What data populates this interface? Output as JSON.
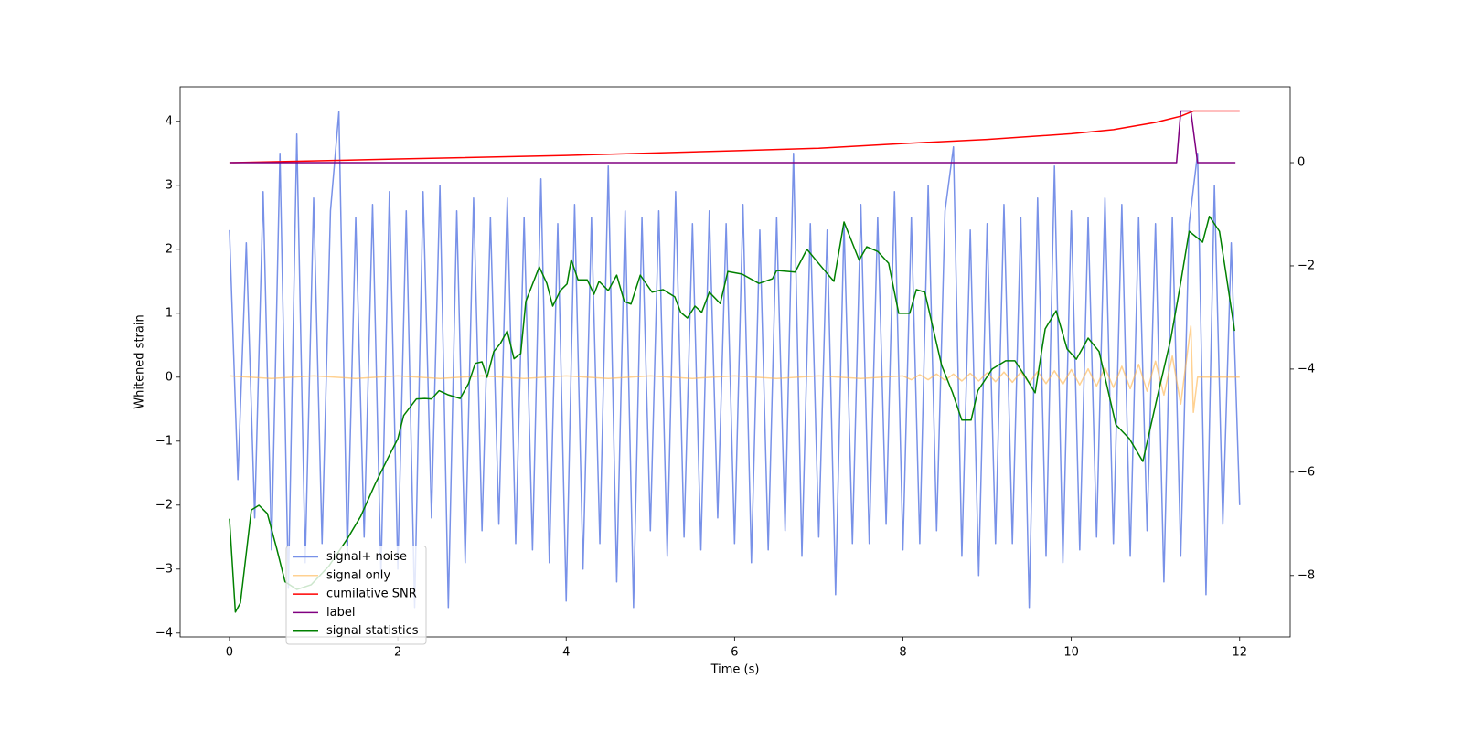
{
  "chart_data": {
    "type": "line",
    "xlabel": "Time (s)",
    "ylabel": "Whitened strain",
    "xlim": [
      -0.586,
      12.6
    ],
    "ylim": [
      -4.06,
      4.54
    ],
    "y2lim": [
      -9.19,
      1.47
    ],
    "xticks": [
      0,
      2,
      4,
      6,
      8,
      10,
      12
    ],
    "yticks": [
      {
        "value": -4,
        "label": "−4"
      },
      {
        "value": -3,
        "label": "−3"
      },
      {
        "value": -2,
        "label": "−2"
      },
      {
        "value": -1,
        "label": "−1"
      },
      0,
      1,
      2,
      3,
      4
    ],
    "y2ticks": [
      {
        "value": -8,
        "label": "−8"
      },
      {
        "value": -6,
        "label": "−6"
      },
      {
        "value": -4,
        "label": "−4"
      },
      {
        "value": -2,
        "label": "−2"
      },
      0
    ],
    "legend_loc": "lower left",
    "series": [
      {
        "name": "signal+ noise",
        "color": "#7891e8",
        "x": [
          0,
          0.1,
          0.2,
          0.3,
          0.4,
          0.5,
          0.6,
          0.7,
          0.8,
          0.9,
          1,
          1.1,
          1.2,
          1.3,
          1.4,
          1.5,
          1.6,
          1.7,
          1.8,
          1.9,
          2,
          2.1,
          2.2,
          2.3,
          2.4,
          2.5,
          2.6,
          2.7,
          2.8,
          2.9,
          3,
          3.1,
          3.2,
          3.3,
          3.4,
          3.5,
          3.6,
          3.7,
          3.8,
          3.9,
          4,
          4.1,
          4.2,
          4.3,
          4.4,
          4.5,
          4.6,
          4.7,
          4.8,
          4.9,
          5,
          5.1,
          5.2,
          5.3,
          5.4,
          5.5,
          5.6,
          5.7,
          5.8,
          5.9,
          6,
          6.1,
          6.2,
          6.3,
          6.4,
          6.5,
          6.6,
          6.7,
          6.8,
          6.9,
          7,
          7.1,
          7.2,
          7.3,
          7.4,
          7.5,
          7.6,
          7.7,
          7.8,
          7.9,
          8,
          8.1,
          8.2,
          8.3,
          8.4,
          8.5,
          8.6,
          8.7,
          8.8,
          8.9,
          9,
          9.1,
          9.2,
          9.3,
          9.4,
          9.5,
          9.6,
          9.7,
          9.8,
          9.9,
          10,
          10.1,
          10.2,
          10.3,
          10.4,
          10.5,
          10.6,
          10.7,
          10.8,
          10.9,
          11,
          11.1,
          11.2,
          11.3,
          11.4,
          11.5,
          11.6,
          11.7,
          11.8,
          11.9,
          12
        ],
        "values": [
          2.3,
          -1.6,
          2.1,
          -2.2,
          2.9,
          -2.7,
          3.5,
          -3.3,
          3.8,
          -2.9,
          2.8,
          -2.6,
          2.6,
          4.15,
          -2.8,
          2.5,
          -2.5,
          2.7,
          -3.1,
          2.9,
          -3.0,
          2.6,
          -3.6,
          2.9,
          -2.2,
          3.0,
          -3.6,
          2.6,
          -2.9,
          2.8,
          -2.4,
          2.5,
          -2.3,
          2.8,
          -2.6,
          2.5,
          -2.7,
          3.1,
          -2.9,
          2.4,
          -3.5,
          2.7,
          -3.0,
          2.5,
          -2.6,
          3.3,
          -3.2,
          2.6,
          -3.6,
          2.5,
          -2.4,
          2.6,
          -2.8,
          2.9,
          -2.5,
          2.4,
          -2.7,
          2.6,
          -2.2,
          2.4,
          -2.6,
          2.7,
          -2.9,
          2.3,
          -2.7,
          2.5,
          -2.4,
          3.5,
          -2.8,
          2.4,
          -2.5,
          2.3,
          -3.4,
          2.4,
          -2.6,
          2.7,
          -2.6,
          2.5,
          -2.3,
          2.9,
          -2.7,
          2.5,
          -2.6,
          3.0,
          -2.4,
          2.6,
          3.6,
          -2.8,
          2.3,
          -3.1,
          2.4,
          -2.6,
          2.7,
          -2.6,
          2.5,
          -3.6,
          2.8,
          -2.8,
          3.3,
          -2.9,
          2.6,
          -2.7,
          2.5,
          -2.5,
          2.8,
          -2.6,
          2.7,
          -2.8,
          2.5,
          -2.4,
          2.4,
          -3.2,
          2.5,
          -2.8,
          2.4,
          3.5,
          -3.4,
          3.0,
          -2.3,
          2.1,
          -2.0
        ]
      },
      {
        "name": "signal only",
        "color": "#ffb347",
        "x": [
          0,
          0.5,
          1,
          1.5,
          2,
          2.5,
          3,
          3.5,
          4,
          4.5,
          5,
          5.5,
          6,
          6.5,
          7,
          7.5,
          8,
          8.1,
          8.2,
          8.3,
          8.4,
          8.5,
          8.6,
          8.7,
          8.8,
          8.9,
          9,
          9.1,
          9.2,
          9.3,
          9.4,
          9.5,
          9.6,
          9.7,
          9.8,
          9.9,
          10,
          10.1,
          10.2,
          10.3,
          10.4,
          10.5,
          10.6,
          10.7,
          10.8,
          10.9,
          11,
          11.1,
          11.2,
          11.3,
          11.4,
          11.42,
          11.45,
          11.5,
          12
        ],
        "values": [
          0.02,
          -0.02,
          0.02,
          -0.02,
          0.02,
          -0.02,
          0.02,
          -0.02,
          0.02,
          -0.02,
          0.02,
          -0.02,
          0.02,
          -0.02,
          0.02,
          -0.02,
          0.02,
          -0.04,
          0.04,
          -0.04,
          0.05,
          -0.05,
          0.05,
          -0.06,
          0.06,
          -0.06,
          0.07,
          -0.07,
          0.08,
          -0.08,
          0.08,
          -0.09,
          0.09,
          -0.1,
          0.1,
          -0.11,
          0.12,
          -0.12,
          0.13,
          -0.14,
          0.15,
          -0.16,
          0.17,
          -0.18,
          0.2,
          -0.22,
          0.25,
          -0.28,
          0.33,
          -0.42,
          0.6,
          0.8,
          -0.55,
          0,
          0
        ]
      },
      {
        "name": "cumilative SNR",
        "color": "#ff0000",
        "axis": "y2",
        "x": [
          0,
          2,
          4,
          6,
          7,
          8,
          9,
          10,
          10.5,
          11,
          11.3,
          11.45,
          12
        ],
        "values": [
          0,
          0.07,
          0.14,
          0.23,
          0.28,
          0.37,
          0.45,
          0.56,
          0.64,
          0.78,
          0.9,
          1.0,
          1.0
        ]
      },
      {
        "name": "label",
        "color": "#800080",
        "axis": "y2",
        "x": [
          0,
          11.25,
          11.3,
          11.42,
          11.5,
          11.95
        ],
        "values": [
          0,
          0,
          1,
          1,
          0,
          0
        ]
      },
      {
        "name": "signal statistics",
        "color": "#008000",
        "axis": "y2",
        "x": [
          0,
          0.07,
          0.13,
          0.26,
          0.35,
          0.45,
          0.56,
          0.66,
          0.8,
          0.97,
          1.18,
          1.4,
          1.56,
          1.73,
          1.89,
          2.0,
          2.07,
          2.22,
          2.32,
          2.4,
          2.49,
          2.6,
          2.74,
          2.84,
          2.92,
          3.0,
          3.06,
          3.14,
          3.22,
          3.3,
          3.38,
          3.46,
          3.52,
          3.68,
          3.77,
          3.84,
          3.93,
          4.01,
          4.06,
          4.14,
          4.25,
          4.33,
          4.39,
          4.5,
          4.6,
          4.69,
          4.77,
          4.88,
          5.02,
          5.15,
          5.29,
          5.36,
          5.44,
          5.53,
          5.61,
          5.7,
          5.83,
          5.92,
          6.09,
          6.29,
          6.45,
          6.5,
          6.72,
          6.86,
          7.08,
          7.18,
          7.3,
          7.4,
          7.48,
          7.57,
          7.7,
          7.83,
          7.95,
          8.08,
          8.16,
          8.26,
          8.33,
          8.46,
          8.59,
          8.7,
          8.81,
          8.89,
          9.06,
          9.22,
          9.33,
          9.44,
          9.57,
          9.69,
          9.82,
          9.95,
          10.06,
          10.2,
          10.33,
          10.53,
          10.69,
          10.85,
          11.02,
          11.18,
          11.29,
          11.4,
          11.56,
          11.64,
          11.76,
          11.83,
          11.94
        ],
        "values": [
          -6.9,
          -8.71,
          -8.53,
          -6.73,
          -6.64,
          -6.8,
          -7.47,
          -8.12,
          -8.27,
          -8.18,
          -7.82,
          -7.29,
          -6.85,
          -6.23,
          -5.7,
          -5.35,
          -4.9,
          -4.58,
          -4.57,
          -4.58,
          -4.42,
          -4.5,
          -4.57,
          -4.28,
          -3.89,
          -3.86,
          -4.16,
          -3.66,
          -3.5,
          -3.26,
          -3.8,
          -3.7,
          -2.69,
          -2.02,
          -2.34,
          -2.78,
          -2.48,
          -2.35,
          -1.88,
          -2.27,
          -2.27,
          -2.55,
          -2.3,
          -2.48,
          -2.18,
          -2.69,
          -2.74,
          -2.18,
          -2.51,
          -2.46,
          -2.6,
          -2.9,
          -3.01,
          -2.78,
          -2.9,
          -2.51,
          -2.73,
          -2.11,
          -2.16,
          -2.34,
          -2.25,
          -2.09,
          -2.12,
          -1.68,
          -2.11,
          -2.3,
          -1.15,
          -1.56,
          -1.89,
          -1.63,
          -1.72,
          -1.95,
          -2.92,
          -2.92,
          -2.46,
          -2.51,
          -3.01,
          -3.93,
          -4.46,
          -4.99,
          -4.99,
          -4.42,
          -4.0,
          -3.84,
          -3.84,
          -4.11,
          -4.46,
          -3.22,
          -2.87,
          -3.61,
          -3.81,
          -3.4,
          -3.66,
          -5.08,
          -5.35,
          -5.79,
          -4.55,
          -3.43,
          -2.42,
          -1.33,
          -1.54,
          -1.04,
          -1.33,
          -2.07,
          -3.26
        ]
      }
    ]
  }
}
